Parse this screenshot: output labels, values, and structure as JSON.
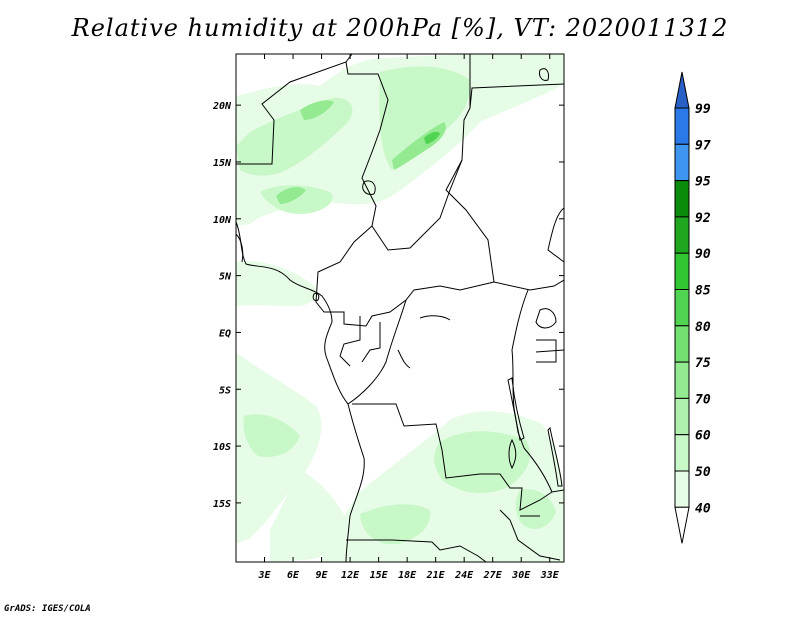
{
  "title": "Relative humidity at 200hPa [%], VT: 2020011312",
  "credit": "GrADS: IGES/COLA",
  "map": {
    "lon_range": [
      0,
      34.5
    ],
    "lat_range": [
      -20.2,
      24.5
    ],
    "lon_ticks": [
      {
        "value": 3,
        "label": "3E"
      },
      {
        "value": 6,
        "label": "6E"
      },
      {
        "value": 9,
        "label": "9E"
      },
      {
        "value": 12,
        "label": "12E"
      },
      {
        "value": 15,
        "label": "15E"
      },
      {
        "value": 18,
        "label": "18E"
      },
      {
        "value": 21,
        "label": "21E"
      },
      {
        "value": 24,
        "label": "24E"
      },
      {
        "value": 27,
        "label": "27E"
      },
      {
        "value": 30,
        "label": "30E"
      },
      {
        "value": 33,
        "label": "33E"
      }
    ],
    "lat_ticks": [
      {
        "value": 20,
        "label": "20N"
      },
      {
        "value": 15,
        "label": "15N"
      },
      {
        "value": 10,
        "label": "10N"
      },
      {
        "value": 5,
        "label": "5N"
      },
      {
        "value": 0,
        "label": "EQ"
      },
      {
        "value": -5,
        "label": "5S"
      },
      {
        "value": -10,
        "label": "10S"
      },
      {
        "value": -15,
        "label": "15S"
      }
    ]
  },
  "colorbar": {
    "levels": [
      "40",
      "50",
      "60",
      "70",
      "75",
      "80",
      "85",
      "90",
      "92",
      "95",
      "97",
      "99"
    ],
    "colors": [
      "#ffffff",
      "#e6fce6",
      "#c8f7c8",
      "#b0f0ae",
      "#93ea91",
      "#73e072",
      "#52d453",
      "#33c633",
      "#1fa81f",
      "#0b8a0b",
      "#3e96f0",
      "#2b78e8",
      "#2860c8"
    ]
  }
}
